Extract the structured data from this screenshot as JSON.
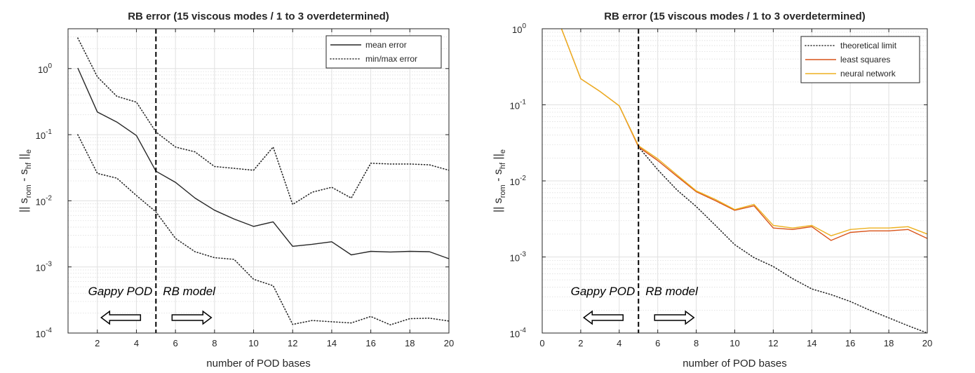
{
  "chart_data": [
    {
      "type": "line",
      "title": "RB error (15 viscous modes / 1 to 3 overdetermined)",
      "xlabel": "number of POD bases",
      "ylabel": "|| s_rom - s_hf ||_e",
      "ylabel_parts": {
        "pre": "|| s",
        "sub1": "rom",
        "mid": " - s",
        "sub2": "hf",
        "post": " ||",
        "sub3": "e"
      },
      "xlim": [
        0.5,
        20
      ],
      "ylim": [
        0.0001,
        4
      ],
      "yscale": "log",
      "xticks": [
        2,
        4,
        6,
        8,
        10,
        12,
        14,
        16,
        18,
        20
      ],
      "yticks": [
        {
          "value": 0.0001,
          "base": "10",
          "exp": "-4"
        },
        {
          "value": 0.001,
          "base": "10",
          "exp": "-3"
        },
        {
          "value": 0.01,
          "base": "10",
          "exp": "-2"
        },
        {
          "value": 0.1,
          "base": "10",
          "exp": "-1"
        },
        {
          "value": 1,
          "base": "10",
          "exp": "0"
        }
      ],
      "grid": true,
      "legend_position": "top-right",
      "vline": 5,
      "annotations": {
        "left": "Gappy POD",
        "right": "RB model"
      },
      "series": [
        {
          "name": "mean error",
          "style": "solid",
          "color": "#262626",
          "x": [
            1,
            2,
            3,
            4,
            5,
            6,
            7,
            8,
            9,
            10,
            11,
            12,
            13,
            14,
            15,
            16,
            17,
            18,
            19,
            20
          ],
          "values": [
            1.02,
            0.22,
            0.155,
            0.097,
            0.028,
            0.019,
            0.011,
            0.0072,
            0.0053,
            0.0041,
            0.0048,
            0.00205,
            0.0022,
            0.0024,
            0.00152,
            0.00172,
            0.00168,
            0.00172,
            0.0017,
            0.00133
          ]
        },
        {
          "name": "min/max error",
          "style": "dotted",
          "color": "#262626",
          "x": [
            1,
            2,
            3,
            4,
            5,
            6,
            7,
            8,
            9,
            10,
            11,
            12,
            13,
            14,
            15,
            16,
            17,
            18,
            19,
            20
          ],
          "values": [
            2.9,
            0.75,
            0.38,
            0.31,
            0.11,
            0.065,
            0.055,
            0.033,
            0.031,
            0.029,
            0.065,
            0.0088,
            0.0135,
            0.016,
            0.011,
            0.037,
            0.036,
            0.036,
            0.035,
            0.029
          ]
        },
        {
          "name": "",
          "style": "dotted",
          "color": "#262626",
          "x": [
            1,
            2,
            3,
            4,
            5,
            6,
            7,
            8,
            9,
            10,
            11,
            12,
            13,
            14,
            15,
            16,
            17,
            18,
            19,
            20
          ],
          "values": [
            0.1,
            0.026,
            0.022,
            0.012,
            0.0068,
            0.0027,
            0.0017,
            0.00138,
            0.0013,
            0.00065,
            0.00052,
            0.000135,
            0.000155,
            0.000148,
            0.000142,
            0.000178,
            0.000133,
            0.000165,
            0.000168,
            0.000152
          ]
        }
      ]
    },
    {
      "type": "line",
      "title": "RB error (15 viscous modes / 1 to 3 overdetermined)",
      "xlabel": "number of POD bases",
      "ylabel": "|| s_rom - s_hf ||_e",
      "ylabel_parts": {
        "pre": "|| s",
        "sub1": "rom",
        "mid": " - s",
        "sub2": "hf",
        "post": " ||",
        "sub3": "e"
      },
      "xlim": [
        0,
        20
      ],
      "ylim": [
        0.0001,
        1
      ],
      "yscale": "log",
      "xticks": [
        0,
        2,
        4,
        6,
        8,
        10,
        12,
        14,
        16,
        18,
        20
      ],
      "yticks": [
        {
          "value": 0.0001,
          "base": "10",
          "exp": "-4"
        },
        {
          "value": 0.001,
          "base": "10",
          "exp": "-3"
        },
        {
          "value": 0.01,
          "base": "10",
          "exp": "-2"
        },
        {
          "value": 0.1,
          "base": "10",
          "exp": "-1"
        },
        {
          "value": 1,
          "base": "10",
          "exp": "0"
        }
      ],
      "grid": true,
      "legend_position": "top-right",
      "vline": 5,
      "annotations": {
        "left": "Gappy POD",
        "right": "RB model"
      },
      "series": [
        {
          "name": "theoretical limit",
          "style": "dotted",
          "color": "#262626",
          "x": [
            5,
            6,
            7,
            8,
            9,
            10,
            11,
            12,
            13,
            14,
            15,
            16,
            17,
            18,
            19,
            20
          ],
          "values": [
            0.028,
            0.014,
            0.0076,
            0.0046,
            0.0026,
            0.00145,
            0.00098,
            0.00075,
            0.00052,
            0.00038,
            0.00032,
            0.00026,
            0.0002,
            0.000158,
            0.000125,
            0.0001
          ]
        },
        {
          "name": "least squares",
          "style": "solid",
          "color": "#d95319",
          "x": [
            1,
            2,
            3,
            4,
            5,
            6,
            7,
            8,
            9,
            10,
            11,
            12,
            13,
            14,
            15,
            16,
            17,
            18,
            19,
            20
          ],
          "values": [
            1.0,
            0.22,
            0.15,
            0.097,
            0.028,
            0.0185,
            0.0115,
            0.0072,
            0.0055,
            0.0041,
            0.0047,
            0.0024,
            0.0023,
            0.0025,
            0.00165,
            0.0021,
            0.0022,
            0.0022,
            0.0023,
            0.00175
          ]
        },
        {
          "name": "neural network",
          "style": "solid",
          "color": "#edb120",
          "x": [
            1,
            2,
            3,
            4,
            5,
            6,
            7,
            8,
            9,
            10,
            11,
            12,
            13,
            14,
            15,
            16,
            17,
            18,
            19,
            20
          ],
          "values": [
            1.0,
            0.22,
            0.15,
            0.097,
            0.029,
            0.0195,
            0.012,
            0.0074,
            0.0057,
            0.0042,
            0.0049,
            0.0026,
            0.0024,
            0.0026,
            0.0019,
            0.0023,
            0.0024,
            0.0024,
            0.0025,
            0.002
          ]
        }
      ]
    }
  ]
}
